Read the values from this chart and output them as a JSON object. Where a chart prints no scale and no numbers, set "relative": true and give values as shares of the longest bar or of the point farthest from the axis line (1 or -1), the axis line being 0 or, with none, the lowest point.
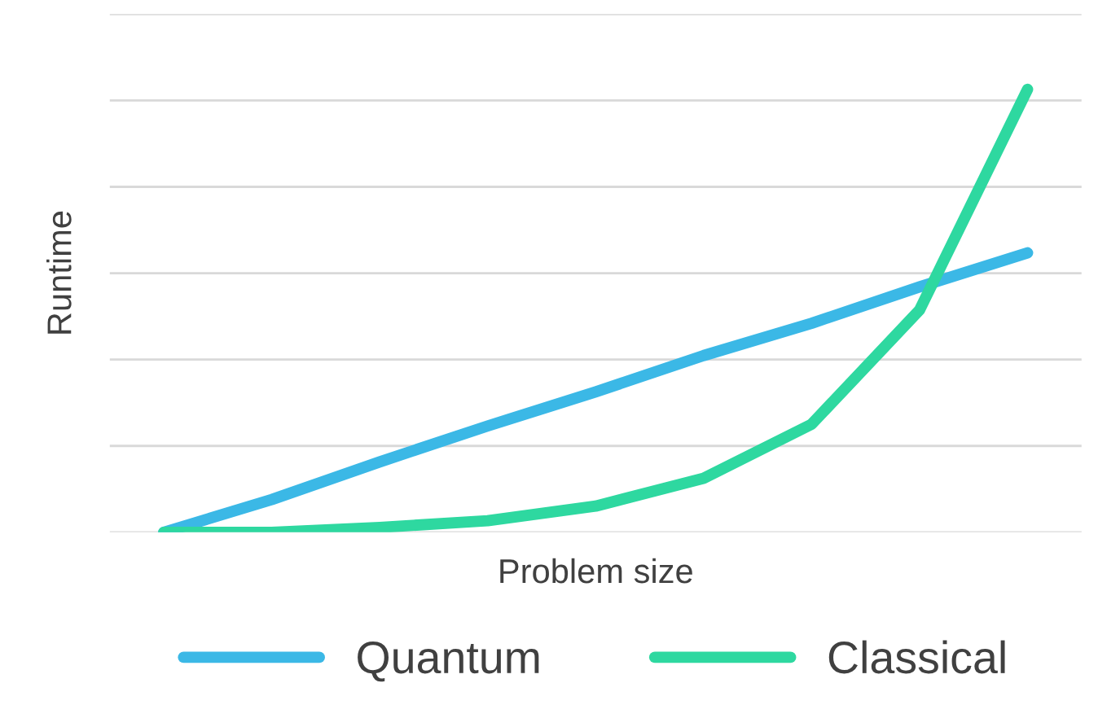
{
  "chart_data": {
    "type": "line",
    "relative": true,
    "xlabel": "Problem size",
    "ylabel": "Runtime",
    "categories": [
      null,
      null,
      null,
      null,
      null,
      null,
      null,
      null,
      null
    ],
    "series": [
      {
        "name": "Quantum",
        "color": "#3bb8e6",
        "values": [
          0,
          0.074,
          0.159,
          0.24,
          0.317,
          0.399,
          0.472,
          0.554,
          0.631
        ]
      },
      {
        "name": "Classical",
        "color": "#2ed8a0",
        "values": [
          0,
          0,
          0.011,
          0.026,
          0.059,
          0.122,
          0.244,
          0.502,
          1
        ]
      }
    ],
    "grid": "y",
    "legend": "bottom",
    "marker": "none",
    "line_style": "solid"
  }
}
